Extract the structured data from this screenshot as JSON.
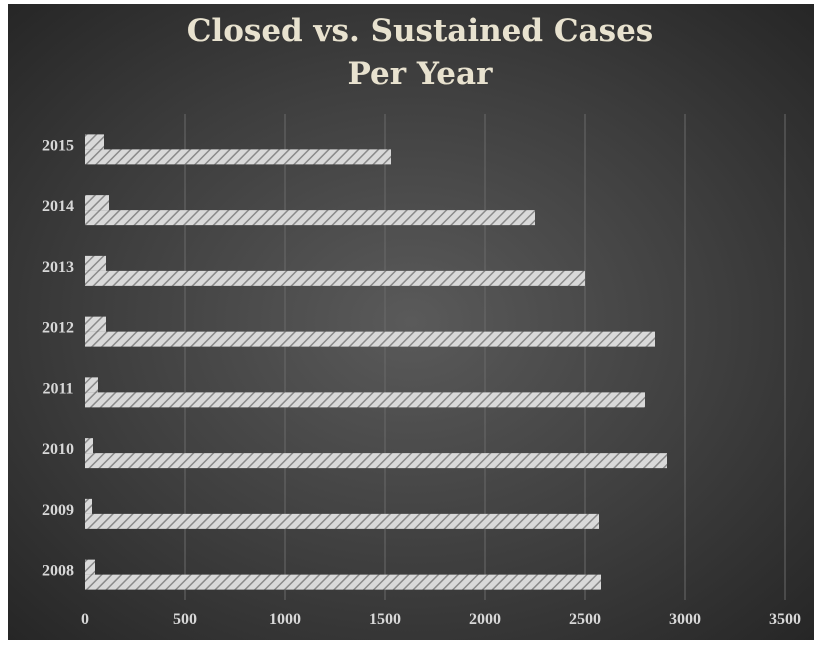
{
  "chart_data": {
    "type": "bar",
    "orientation": "horizontal",
    "title_lines": [
      "Closed vs. Sustained Cases",
      "Per Year"
    ],
    "categories": [
      "2008",
      "2009",
      "2010",
      "2011",
      "2012",
      "2013",
      "2014",
      "2015"
    ],
    "series": [
      {
        "values": [
          2580,
          2570,
          2910,
          2800,
          2850,
          2500,
          2250,
          1530
        ]
      },
      {
        "values": [
          50,
          35,
          40,
          65,
          105,
          105,
          120,
          95
        ]
      }
    ],
    "xlim": [
      0,
      3500
    ],
    "x_ticks": [
      "0",
      "500",
      "1000",
      "1500",
      "2000",
      "2500",
      "3000",
      "3500"
    ],
    "grid": "vertical",
    "legend": "none",
    "colors": {
      "background_center": "#5a5a5a",
      "background_edge": "#262626",
      "bar_fill": "#d9d9d9",
      "bar_hatch": "#8a8a8a",
      "title": "#e8e2cf",
      "ticks": "#d8d8d8",
      "grid": "#6a6a6a"
    }
  }
}
